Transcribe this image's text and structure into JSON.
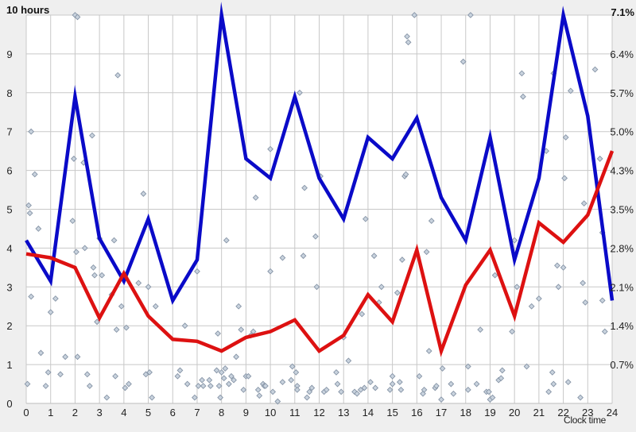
{
  "chart_data": {
    "type": "line",
    "title": "",
    "left_axis_title": "10 hours",
    "right_axis_top_label": "7.1%",
    "xlabel": "Clock time",
    "ylabel": "hours",
    "y2label": "percent",
    "x": [
      0,
      1,
      2,
      3,
      4,
      5,
      6,
      7,
      8,
      9,
      10,
      11,
      12,
      13,
      14,
      15,
      16,
      17,
      18,
      19,
      20,
      21,
      22,
      23,
      24
    ],
    "xlim": [
      0,
      24
    ],
    "ylim": [
      0,
      10
    ],
    "y2lim": [
      0,
      7.1
    ],
    "x_ticks": [
      "0",
      "1",
      "2",
      "3",
      "4",
      "5",
      "6",
      "7",
      "8",
      "9",
      "10",
      "11",
      "12",
      "13",
      "14",
      "15",
      "16",
      "17",
      "18",
      "19",
      "20",
      "21",
      "22",
      "23",
      "24"
    ],
    "y_ticks": [
      "0",
      "1",
      "2",
      "3",
      "4",
      "5",
      "6",
      "7",
      "8",
      "9"
    ],
    "y2_ticks": [
      "0.7%",
      "1.4%",
      "2.1%",
      "2.8%",
      "3.5%",
      "4.3%",
      "5.0%",
      "5.7%",
      "6.4%"
    ],
    "grid": true,
    "legend": null,
    "series": [
      {
        "name": "blue-line",
        "color": "#0a0ac8",
        "values": [
          4.2,
          3.15,
          7.9,
          4.25,
          3.15,
          4.75,
          2.65,
          3.7,
          10.0,
          6.3,
          5.8,
          7.9,
          5.8,
          4.75,
          6.85,
          6.3,
          7.35,
          5.3,
          4.2,
          6.85,
          3.7,
          5.8,
          10.0,
          7.4,
          2.65
        ]
      },
      {
        "name": "red-line",
        "color": "#dd1111",
        "values": [
          3.85,
          3.75,
          3.5,
          2.2,
          3.35,
          2.25,
          1.65,
          1.6,
          1.35,
          1.7,
          1.85,
          2.15,
          1.35,
          1.75,
          2.8,
          2.1,
          3.95,
          1.35,
          3.05,
          3.95,
          2.25,
          4.65,
          4.15,
          4.85,
          6.5
        ]
      }
    ],
    "scatter": {
      "name": "individual-observations",
      "color": "#9aa8b8",
      "points": [
        [
          0.05,
          0.5
        ],
        [
          0.1,
          5.1
        ],
        [
          0.15,
          4.9
        ],
        [
          0.2,
          7.0
        ],
        [
          0.2,
          2.75
        ],
        [
          0.35,
          5.9
        ],
        [
          0.5,
          4.5
        ],
        [
          0.6,
          1.3
        ],
        [
          0.8,
          0.45
        ],
        [
          0.9,
          0.8
        ],
        [
          1.2,
          2.7
        ],
        [
          1.4,
          0.75
        ],
        [
          1.6,
          1.2
        ],
        [
          1.95,
          6.3
        ],
        [
          1.9,
          4.7
        ],
        [
          2.0,
          10.0
        ],
        [
          2.05,
          3.9
        ],
        [
          2.1,
          1.2
        ],
        [
          2.35,
          6.2
        ],
        [
          2.4,
          4.0
        ],
        [
          2.5,
          0.75
        ],
        [
          2.6,
          0.45
        ],
        [
          2.7,
          6.9
        ],
        [
          2.75,
          3.5
        ],
        [
          2.8,
          3.3
        ],
        [
          2.9,
          2.1
        ],
        [
          3.0,
          4.25
        ],
        [
          3.1,
          3.3
        ],
        [
          3.3,
          0.15
        ],
        [
          3.5,
          2.8
        ],
        [
          3.6,
          4.2
        ],
        [
          3.65,
          0.7
        ],
        [
          3.7,
          1.9
        ],
        [
          3.75,
          8.45
        ],
        [
          3.9,
          2.5
        ],
        [
          4.05,
          0.4
        ],
        [
          4.1,
          1.95
        ],
        [
          4.2,
          0.5
        ],
        [
          4.6,
          3.1
        ],
        [
          4.8,
          5.4
        ],
        [
          4.9,
          0.75
        ],
        [
          5.0,
          3.0
        ],
        [
          5.05,
          0.8
        ],
        [
          5.15,
          0.15
        ],
        [
          5.3,
          2.5
        ],
        [
          6.2,
          0.7
        ],
        [
          6.3,
          0.85
        ],
        [
          6.5,
          2.0
        ],
        [
          6.6,
          0.5
        ],
        [
          6.9,
          0.15
        ],
        [
          7.0,
          3.4
        ],
        [
          7.05,
          0.45
        ],
        [
          7.2,
          0.6
        ],
        [
          7.25,
          0.45
        ],
        [
          7.5,
          0.6
        ],
        [
          7.55,
          0.45
        ],
        [
          7.8,
          0.85
        ],
        [
          7.85,
          1.8
        ],
        [
          7.9,
          0.45
        ],
        [
          7.95,
          0.15
        ],
        [
          8.0,
          0.8
        ],
        [
          8.1,
          0.65
        ],
        [
          8.15,
          0.9
        ],
        [
          8.2,
          4.2
        ],
        [
          8.3,
          0.5
        ],
        [
          8.4,
          0.7
        ],
        [
          8.5,
          0.6
        ],
        [
          8.6,
          1.2
        ],
        [
          8.8,
          1.9
        ],
        [
          8.9,
          0.35
        ],
        [
          9.0,
          0.7
        ],
        [
          9.1,
          0.7
        ],
        [
          9.2,
          1.75
        ],
        [
          9.3,
          1.85
        ],
        [
          9.4,
          5.3
        ],
        [
          9.5,
          0.35
        ],
        [
          9.55,
          0.2
        ],
        [
          9.7,
          0.5
        ],
        [
          9.75,
          0.45
        ],
        [
          9.8,
          0.45
        ],
        [
          10.0,
          3.4
        ],
        [
          10.0,
          6.55
        ],
        [
          10.1,
          0.3
        ],
        [
          10.3,
          0.05
        ],
        [
          10.5,
          3.75
        ],
        [
          10.5,
          0.55
        ],
        [
          10.85,
          0.6
        ],
        [
          10.9,
          0.95
        ],
        [
          11.05,
          0.8
        ],
        [
          11.1,
          0.45
        ],
        [
          11.1,
          0.35
        ],
        [
          11.35,
          3.8
        ],
        [
          11.4,
          5.55
        ],
        [
          11.5,
          0.15
        ],
        [
          11.6,
          0.3
        ],
        [
          11.7,
          0.4
        ],
        [
          11.85,
          4.3
        ],
        [
          11.9,
          3.0
        ],
        [
          12.05,
          5.85
        ],
        [
          12.2,
          0.3
        ],
        [
          12.3,
          0.35
        ],
        [
          12.7,
          0.8
        ],
        [
          12.75,
          0.5
        ],
        [
          12.9,
          0.3
        ],
        [
          13.0,
          1.7
        ],
        [
          13.2,
          1.1
        ],
        [
          13.45,
          0.3
        ],
        [
          13.55,
          0.25
        ],
        [
          13.7,
          0.35
        ],
        [
          13.75,
          2.3
        ],
        [
          13.85,
          0.4
        ],
        [
          13.9,
          4.75
        ],
        [
          14.1,
          0.55
        ],
        [
          14.25,
          3.8
        ],
        [
          14.3,
          0.4
        ],
        [
          14.45,
          2.6
        ],
        [
          14.55,
          3.0
        ],
        [
          14.9,
          0.35
        ],
        [
          15.0,
          0.5
        ],
        [
          15.0,
          0.7
        ],
        [
          15.2,
          2.85
        ],
        [
          15.3,
          0.55
        ],
        [
          15.35,
          0.35
        ],
        [
          15.6,
          9.45
        ],
        [
          15.65,
          9.3
        ],
        [
          15.5,
          5.85
        ],
        [
          15.55,
          5.9
        ],
        [
          15.4,
          3.7
        ],
        [
          16.1,
          0.7
        ],
        [
          16.25,
          0.25
        ],
        [
          16.3,
          0.35
        ],
        [
          16.4,
          3.9
        ],
        [
          16.5,
          1.35
        ],
        [
          16.6,
          4.7
        ],
        [
          16.75,
          0.4
        ],
        [
          16.8,
          0.45
        ],
        [
          17.0,
          0.1
        ],
        [
          17.05,
          0.9
        ],
        [
          17.4,
          0.5
        ],
        [
          17.5,
          0.25
        ],
        [
          17.9,
          8.8
        ],
        [
          18.1,
          0.95
        ],
        [
          18.1,
          0.35
        ],
        [
          18.45,
          0.5
        ],
        [
          18.6,
          1.9
        ],
        [
          18.85,
          0.3
        ],
        [
          18.95,
          0.3
        ],
        [
          19.0,
          0.1
        ],
        [
          19.1,
          0.15
        ],
        [
          19.2,
          3.3
        ],
        [
          19.35,
          0.6
        ],
        [
          19.45,
          0.65
        ],
        [
          19.5,
          0.85
        ],
        [
          19.9,
          1.85
        ],
        [
          20.0,
          4.2
        ],
        [
          20.1,
          3.0
        ],
        [
          20.3,
          8.5
        ],
        [
          20.35,
          7.9
        ],
        [
          20.5,
          0.95
        ],
        [
          20.7,
          2.5
        ],
        [
          21.0,
          2.7
        ],
        [
          21.3,
          6.5
        ],
        [
          21.4,
          0.3
        ],
        [
          21.55,
          0.8
        ],
        [
          21.6,
          8.5
        ],
        [
          21.6,
          0.5
        ],
        [
          21.75,
          3.55
        ],
        [
          21.8,
          3.0
        ],
        [
          22.0,
          3.5
        ],
        [
          22.05,
          5.8
        ],
        [
          22.1,
          6.85
        ],
        [
          22.2,
          0.55
        ],
        [
          22.3,
          8.05
        ],
        [
          22.7,
          0.15
        ],
        [
          22.8,
          3.1
        ],
        [
          22.85,
          5.15
        ],
        [
          22.9,
          2.6
        ],
        [
          23.3,
          8.6
        ],
        [
          23.5,
          6.3
        ],
        [
          23.6,
          4.4
        ],
        [
          23.6,
          2.65
        ],
        [
          23.7,
          1.85
        ],
        [
          2.1,
          9.95
        ],
        [
          15.9,
          10.0
        ],
        [
          18.2,
          10.0
        ],
        [
          8.7,
          2.5
        ],
        [
          11.2,
          8.0
        ],
        [
          1.0,
          2.35
        ]
      ]
    }
  },
  "labels": {
    "left_axis_title": "10 hours",
    "right_axis_top": "7.1%",
    "x_axis_title": "Clock time"
  }
}
